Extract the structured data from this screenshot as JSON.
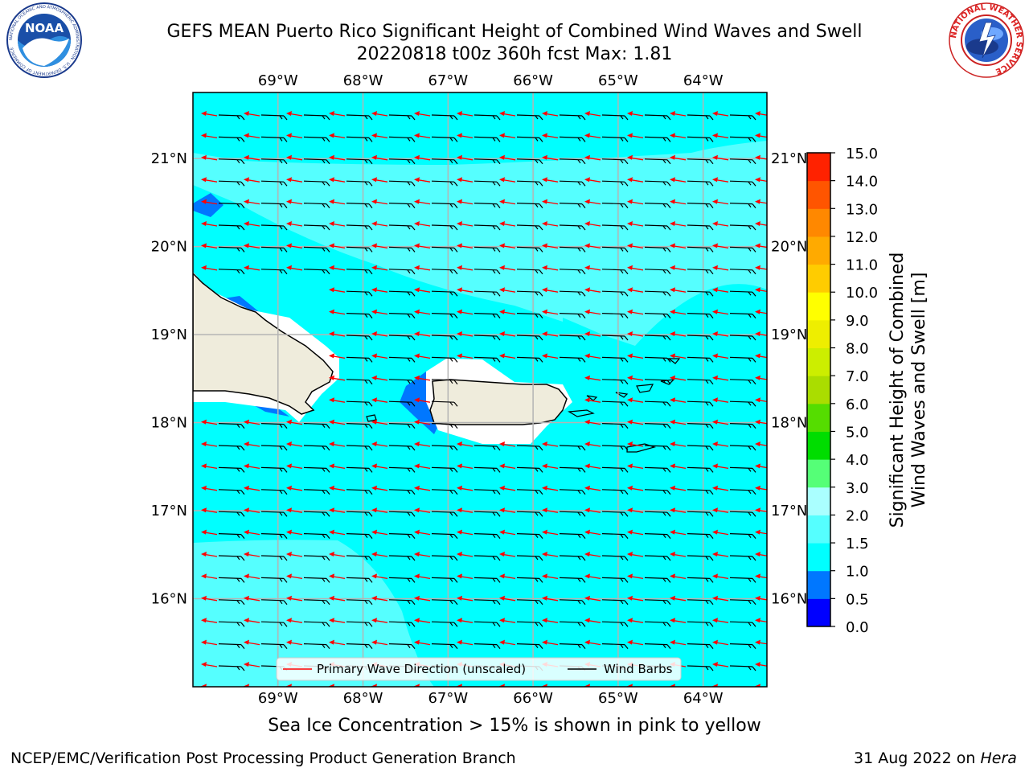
{
  "header": {
    "title_line1": "GEFS MEAN Puerto Rico Significant Height of Combined Wind Waves and Swell",
    "title_line2": "20220818 t00z 360h fcst   Max: 1.81"
  },
  "logos": {
    "left": {
      "icon": "noaa-logo",
      "text": "NOAA",
      "ring_text": "NATIONAL OCEANIC AND ATMOSPHERIC ADMINISTRATION · U.S. DEPARTMENT OF COMMERCE"
    },
    "right": {
      "icon": "nws-logo",
      "ring_text": "NATIONAL WEATHER SERVICE"
    }
  },
  "map": {
    "lon_labels": [
      "69°W",
      "68°W",
      "67°W",
      "66°W",
      "65°W",
      "64°W"
    ],
    "lat_labels": [
      "21°N",
      "20°N",
      "19°N",
      "18°N",
      "17°N",
      "16°N"
    ],
    "extent": {
      "lon_min": -70.0,
      "lon_max": -63.25,
      "lat_min": 15.0,
      "lat_max": 21.75
    },
    "gridlines": true,
    "vectors": {
      "wave_direction": "toward-west",
      "wind_barbs": "from-east"
    }
  },
  "legend": {
    "wave_label": "Primary Wave Direction (unscaled)",
    "barb_label": "Wind Barbs",
    "wave_color": "#ff0000",
    "barb_color": "#000000"
  },
  "colorbar": {
    "label": "Significant Height of Combined\nWind Waves and Swell [m]",
    "label_line1": "Significant Height of Combined",
    "label_line2": "Wind Waves and Swell [m]",
    "ticks": [
      "0.0",
      "0.5",
      "1.0",
      "1.5",
      "2.0",
      "3.0",
      "4.0",
      "5.0",
      "6.0",
      "7.0",
      "8.0",
      "9.0",
      "10.0",
      "11.0",
      "12.0",
      "13.0",
      "14.0",
      "15.0"
    ],
    "colors": [
      "#0000ff",
      "#0077ff",
      "#00ffff",
      "#55ffff",
      "#aaffff",
      "#55ff77",
      "#00dd00",
      "#55dd00",
      "#aadd00",
      "#ccee00",
      "#eeee00",
      "#ffff00",
      "#ffcc00",
      "#ffaa00",
      "#ff8800",
      "#ff5500",
      "#ff2200"
    ]
  },
  "note": "Sea Ice Concentration > 15% is shown in pink to yellow",
  "footer": {
    "left": "NCEP/EMC/Verification Post Processing Product Generation Branch",
    "right_date": "31 Aug 2022 on ",
    "right_machine": "Hera"
  }
}
